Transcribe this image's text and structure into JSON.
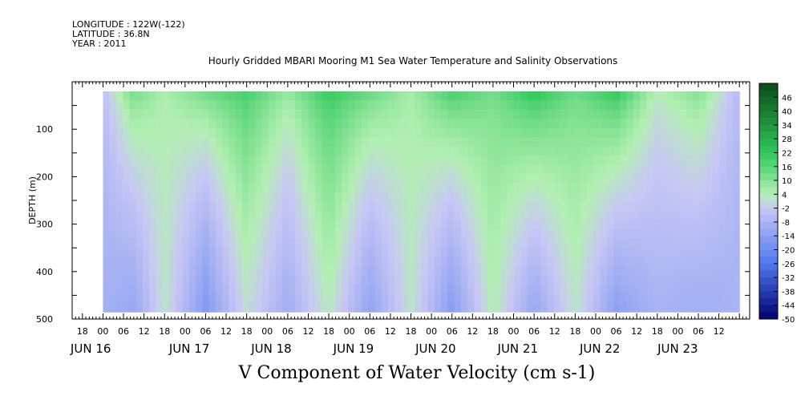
{
  "header": {
    "longitude": "LONGITUDE : 122W(-122)",
    "latitude": "LATITUDE : 36.8N",
    "year": "YEAR : 2011"
  },
  "chart_data": {
    "type": "heatmap",
    "title": "Hourly Gridded MBARI Mooring M1 Sea Water Temperature and Salinity Observations",
    "xlabel": "V Component of Water Velocity (cm s-1)",
    "ylabel": "DEPTH (m)",
    "ylim": [
      500,
      0
    ],
    "y_ticks": [
      100,
      200,
      300,
      400,
      500
    ],
    "x_hour_ticks": [
      "18",
      "00",
      "06",
      "12",
      "18",
      "00",
      "06",
      "12",
      "18",
      "00",
      "06",
      "12",
      "18",
      "00",
      "06",
      "12",
      "18",
      "00",
      "06",
      "12",
      "18",
      "00",
      "06",
      "12",
      "18",
      "00",
      "06",
      "12",
      "18",
      "00",
      "06",
      "12"
    ],
    "x_date_labels": [
      "JUN 16",
      "JUN 17",
      "JUN 18",
      "JUN 19",
      "JUN 20",
      "JUN 21",
      "JUN 22",
      "JUN 23"
    ],
    "xlim": [
      "2011-06-15T15:00",
      "2011-06-23T21:00"
    ],
    "data_x_range": [
      "2011-06-16T00:00",
      "2011-06-23T18:00"
    ],
    "data_depth_range": [
      20,
      485
    ],
    "colorbar": {
      "levels": [
        "46",
        "40",
        "34",
        "28",
        "22",
        "16",
        "10",
        "4",
        "-2",
        "-8",
        "-14",
        "-20",
        "-26",
        "-32",
        "-38",
        "-44",
        "-50"
      ],
      "range": [
        -50,
        52
      ]
    },
    "column_profile": [
      {
        "time": "2011-06-16T00:00",
        "v_surface": -4,
        "v_deep": -9
      },
      {
        "time": "2011-06-16T09:00",
        "v_surface": 14,
        "v_deep": -12
      },
      {
        "time": "2011-06-16T18:00",
        "v_surface": 5,
        "v_deep": 2
      },
      {
        "time": "2011-06-17T06:00",
        "v_surface": 15,
        "v_deep": -16
      },
      {
        "time": "2011-06-17T18:00",
        "v_surface": 20,
        "v_deep": 1
      },
      {
        "time": "2011-06-18T06:00",
        "v_surface": 9,
        "v_deep": -10
      },
      {
        "time": "2011-06-18T18:00",
        "v_surface": 22,
        "v_deep": 3
      },
      {
        "time": "2011-06-19T06:00",
        "v_surface": 16,
        "v_deep": -13
      },
      {
        "time": "2011-06-19T18:00",
        "v_surface": 6,
        "v_deep": 2
      },
      {
        "time": "2011-06-20T06:00",
        "v_surface": 21,
        "v_deep": -15
      },
      {
        "time": "2011-06-20T18:00",
        "v_surface": 13,
        "v_deep": 4
      },
      {
        "time": "2011-06-21T06:00",
        "v_surface": 25,
        "v_deep": -12
      },
      {
        "time": "2011-06-21T18:00",
        "v_surface": 14,
        "v_deep": 2
      },
      {
        "time": "2011-06-22T06:00",
        "v_surface": 24,
        "v_deep": -14
      },
      {
        "time": "2011-06-22T18:00",
        "v_surface": 4,
        "v_deep": -8
      },
      {
        "time": "2011-06-23T06:00",
        "v_surface": 12,
        "v_deep": -10
      },
      {
        "time": "2011-06-23T18:00",
        "v_surface": -6,
        "v_deep": -8
      }
    ]
  },
  "colors": {
    "positive_max": "#0c4a18",
    "positive_mid": "#2ec85a",
    "near_zero_pos": "#b4f0b4",
    "near_zero_neg": "#c8c8f4",
    "negative_mid": "#5078f0",
    "negative_max": "#00006e"
  }
}
